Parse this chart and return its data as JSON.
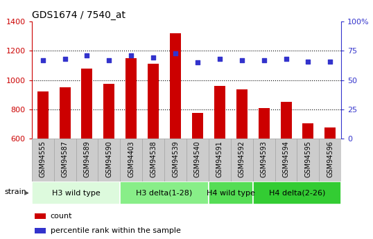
{
  "title": "GDS1674 / 7540_at",
  "samples": [
    "GSM94555",
    "GSM94587",
    "GSM94589",
    "GSM94590",
    "GSM94403",
    "GSM94538",
    "GSM94539",
    "GSM94540",
    "GSM94591",
    "GSM94592",
    "GSM94593",
    "GSM94594",
    "GSM94595",
    "GSM94596"
  ],
  "counts": [
    920,
    950,
    1080,
    975,
    1150,
    1110,
    1320,
    775,
    960,
    935,
    808,
    850,
    705,
    675
  ],
  "percentiles": [
    67,
    68,
    71,
    67,
    71,
    69,
    73,
    65,
    68,
    67,
    67,
    68,
    66,
    66
  ],
  "bar_color": "#cc0000",
  "dot_color": "#3333cc",
  "ylim_left": [
    600,
    1400
  ],
  "ylim_right": [
    0,
    100
  ],
  "yticks_left": [
    600,
    800,
    1000,
    1200,
    1400
  ],
  "yticks_right": [
    0,
    25,
    50,
    75,
    100
  ],
  "ytick_right_labels": [
    "0",
    "25",
    "50",
    "75",
    "100%"
  ],
  "groups": [
    {
      "label": "H3 wild type",
      "start": 0,
      "end": 4,
      "color": "#ddfadd"
    },
    {
      "label": "H3 delta(1-28)",
      "start": 4,
      "end": 8,
      "color": "#88ee88"
    },
    {
      "label": "H4 wild type",
      "start": 8,
      "end": 10,
      "color": "#55dd55"
    },
    {
      "label": "H4 delta(2-26)",
      "start": 10,
      "end": 14,
      "color": "#33cc33"
    }
  ],
  "axis_color_left": "#cc0000",
  "axis_color_right": "#3333cc",
  "ticklabel_bg": "#cccccc",
  "ticklabel_border": "#aaaaaa",
  "legend_count": "count",
  "legend_pct": "percentile rank within the sample",
  "strain_label": "strain",
  "dotted_lines": [
    800,
    1000,
    1200
  ],
  "bar_bottom": 600
}
